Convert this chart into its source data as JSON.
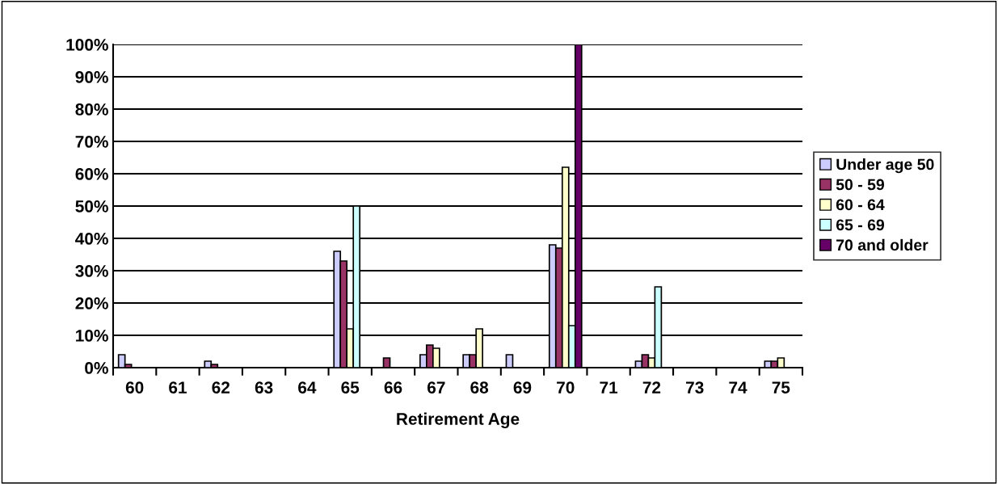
{
  "chart_data": {
    "type": "bar",
    "xlabel": "Retirement Age",
    "categories": [
      "60",
      "61",
      "62",
      "63",
      "64",
      "65",
      "66",
      "67",
      "68",
      "69",
      "70",
      "71",
      "72",
      "73",
      "74",
      "75"
    ],
    "series": [
      {
        "name": "Under age 50",
        "color": "#ccccff",
        "values": [
          4,
          0,
          2,
          0,
          0,
          36,
          0,
          4,
          4,
          4,
          38,
          0,
          2,
          0,
          0,
          2
        ]
      },
      {
        "name": "50 - 59",
        "color": "#993366",
        "values": [
          1,
          0,
          1,
          0,
          0,
          33,
          3,
          7,
          4,
          0,
          37,
          0,
          4,
          0,
          0,
          2
        ]
      },
      {
        "name": "60 - 64",
        "color": "#ffffcc",
        "values": [
          0,
          0,
          0,
          0,
          0,
          12,
          0,
          6,
          12,
          0,
          62,
          0,
          3,
          0,
          0,
          3
        ]
      },
      {
        "name": "65 - 69",
        "color": "#ccffff",
        "values": [
          0,
          0,
          0,
          0,
          0,
          50,
          0,
          0,
          0,
          0,
          13,
          0,
          25,
          0,
          0,
          0
        ]
      },
      {
        "name": "70 and older",
        "color": "#660066",
        "values": [
          0,
          0,
          0,
          0,
          0,
          0,
          0,
          0,
          0,
          0,
          100,
          0,
          0,
          0,
          0,
          0
        ]
      }
    ],
    "ylim": [
      0,
      100
    ],
    "yticks": [
      {
        "value": 0,
        "label": "0%"
      },
      {
        "value": 10,
        "label": "10%"
      },
      {
        "value": 20,
        "label": "20%"
      },
      {
        "value": 30,
        "label": "30%"
      },
      {
        "value": 40,
        "label": "40%"
      },
      {
        "value": 50,
        "label": "50%"
      },
      {
        "value": 60,
        "label": "60%"
      },
      {
        "value": 70,
        "label": "70%"
      },
      {
        "value": 80,
        "label": "80%"
      },
      {
        "value": 90,
        "label": "90%"
      },
      {
        "value": 100,
        "label": "100%"
      }
    ],
    "grid": "y",
    "legend": "right"
  }
}
